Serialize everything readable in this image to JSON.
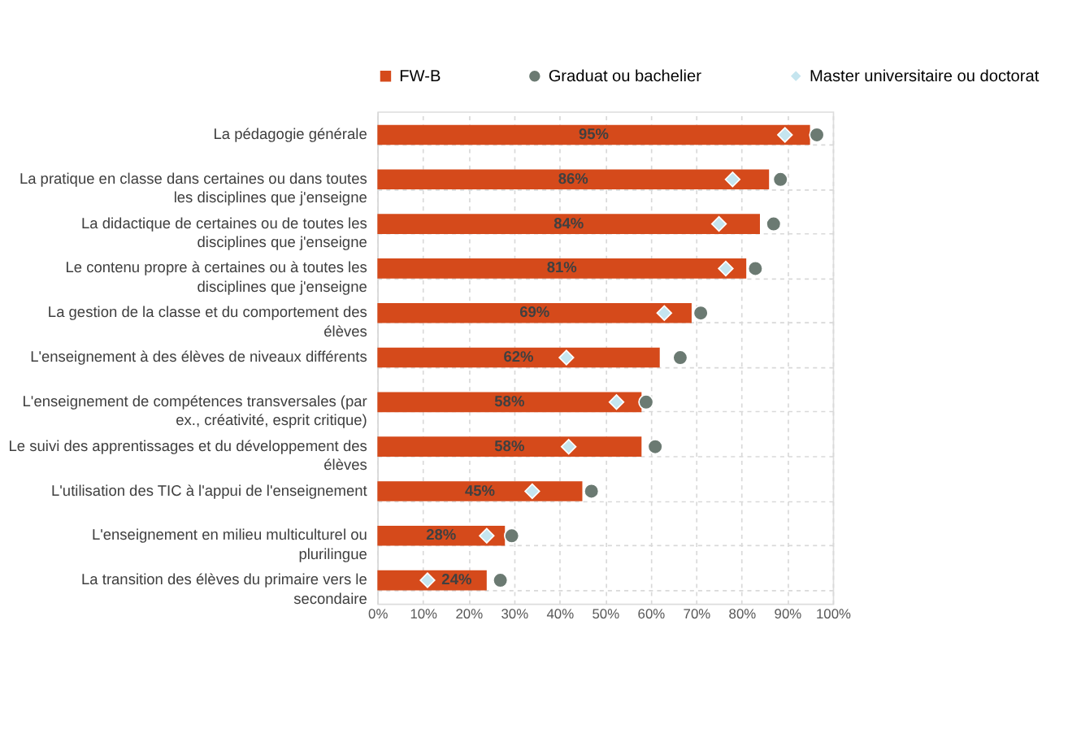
{
  "chart_data": {
    "type": "bar",
    "orientation": "horizontal",
    "categories": [
      "La pédagogie générale",
      "La pratique en classe dans certaines ou dans toutes les disciplines que j'enseigne",
      "La didactique de certaines ou de toutes les disciplines que j'enseigne",
      "Le contenu propre à certaines ou à toutes les disciplines que j'enseigne",
      "La gestion de la classe et du comportement des élèves",
      "L'enseignement à des élèves de niveaux différents",
      "L'enseignement de compétences transversales (par ex., créativité, esprit critique)",
      "Le suivi des apprentissages et du développement des élèves",
      "L'utilisation des TIC à l'appui de l'enseignement",
      "L'enseignement en milieu multiculturel ou plurilingue",
      "La transition des élèves du primaire vers le secondaire"
    ],
    "series": [
      {
        "name": "FW-B",
        "color": "#d54a1b",
        "values": [
          95,
          86,
          84,
          81,
          69,
          62,
          58,
          58,
          45,
          28,
          24
        ],
        "value_labels": [
          "95%",
          "86%",
          "84%",
          "81%",
          "69%",
          "62%",
          "58%",
          "58%",
          "45%",
          "28%",
          "24%"
        ]
      },
      {
        "name": "Graduat ou bachelier",
        "type": "scatter",
        "marker": "circle",
        "color": "#6b7a72",
        "values": [
          96.5,
          88.5,
          87,
          83,
          71,
          66.5,
          59,
          61,
          47,
          29.5,
          27
        ]
      },
      {
        "name": "Master universitaire ou doctorat",
        "type": "scatter",
        "marker": "diamond",
        "color": "#c5e5ef",
        "values": [
          89.5,
          78,
          75,
          76.5,
          63,
          41.5,
          52.5,
          42,
          34,
          24,
          11
        ]
      }
    ],
    "xlim": [
      0,
      100
    ],
    "xticks": [
      {
        "value": 0,
        "label": "0%"
      },
      {
        "value": 10,
        "label": "10%"
      },
      {
        "value": 20,
        "label": "20%"
      },
      {
        "value": 30,
        "label": "30%"
      },
      {
        "value": 40,
        "label": "40%"
      },
      {
        "value": 50,
        "label": "50%"
      },
      {
        "value": 60,
        "label": "60%"
      },
      {
        "value": 70,
        "label": "70%"
      },
      {
        "value": 80,
        "label": "80%"
      },
      {
        "value": 90,
        "label": "90%"
      },
      {
        "value": 100,
        "label": "100%"
      }
    ],
    "grid": true,
    "legend": "top"
  }
}
